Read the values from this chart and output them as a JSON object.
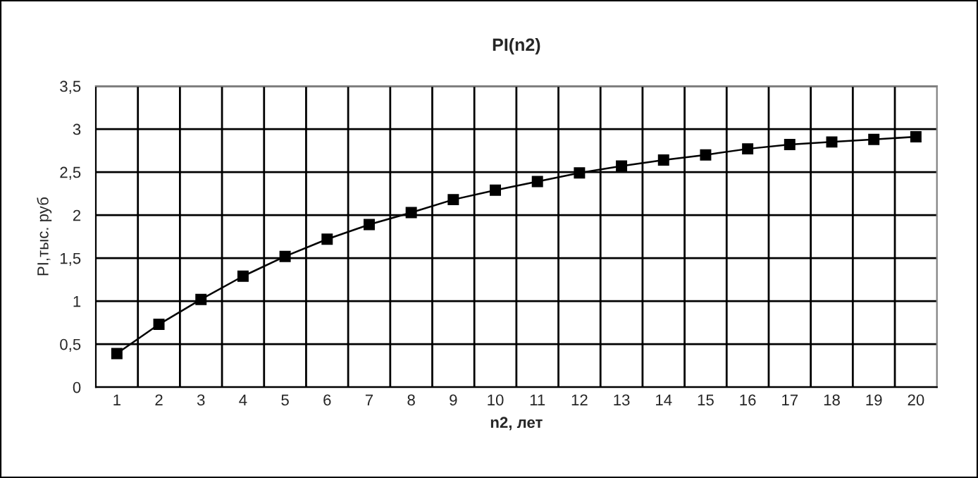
{
  "chart_data": {
    "type": "line",
    "title": "PI(n2)",
    "xlabel": "n2, лет",
    "ylabel": "PI,тыс. руб",
    "categories": [
      "1",
      "2",
      "3",
      "4",
      "5",
      "6",
      "7",
      "8",
      "9",
      "10",
      "11",
      "12",
      "13",
      "14",
      "15",
      "16",
      "17",
      "18",
      "19",
      "20"
    ],
    "series": [
      {
        "color": "#000000",
        "values": [
          0.39,
          0.73,
          1.02,
          1.29,
          1.52,
          1.72,
          1.89,
          2.03,
          2.18,
          2.29,
          2.39,
          2.49,
          2.57,
          2.64,
          2.7,
          2.77,
          2.82,
          2.85,
          2.88,
          2.91
        ]
      }
    ],
    "ylim": [
      0,
      3.5
    ],
    "yticks": [
      0,
      {
        "value": 0.5,
        "label": "0,5"
      },
      1,
      {
        "value": 1.5,
        "label": "1,5"
      },
      2,
      {
        "value": 2.5,
        "label": "2,5"
      },
      3,
      {
        "value": 3.5,
        "label": "3,5"
      }
    ],
    "grid": true,
    "marker": "square",
    "line_style": "solid"
  }
}
